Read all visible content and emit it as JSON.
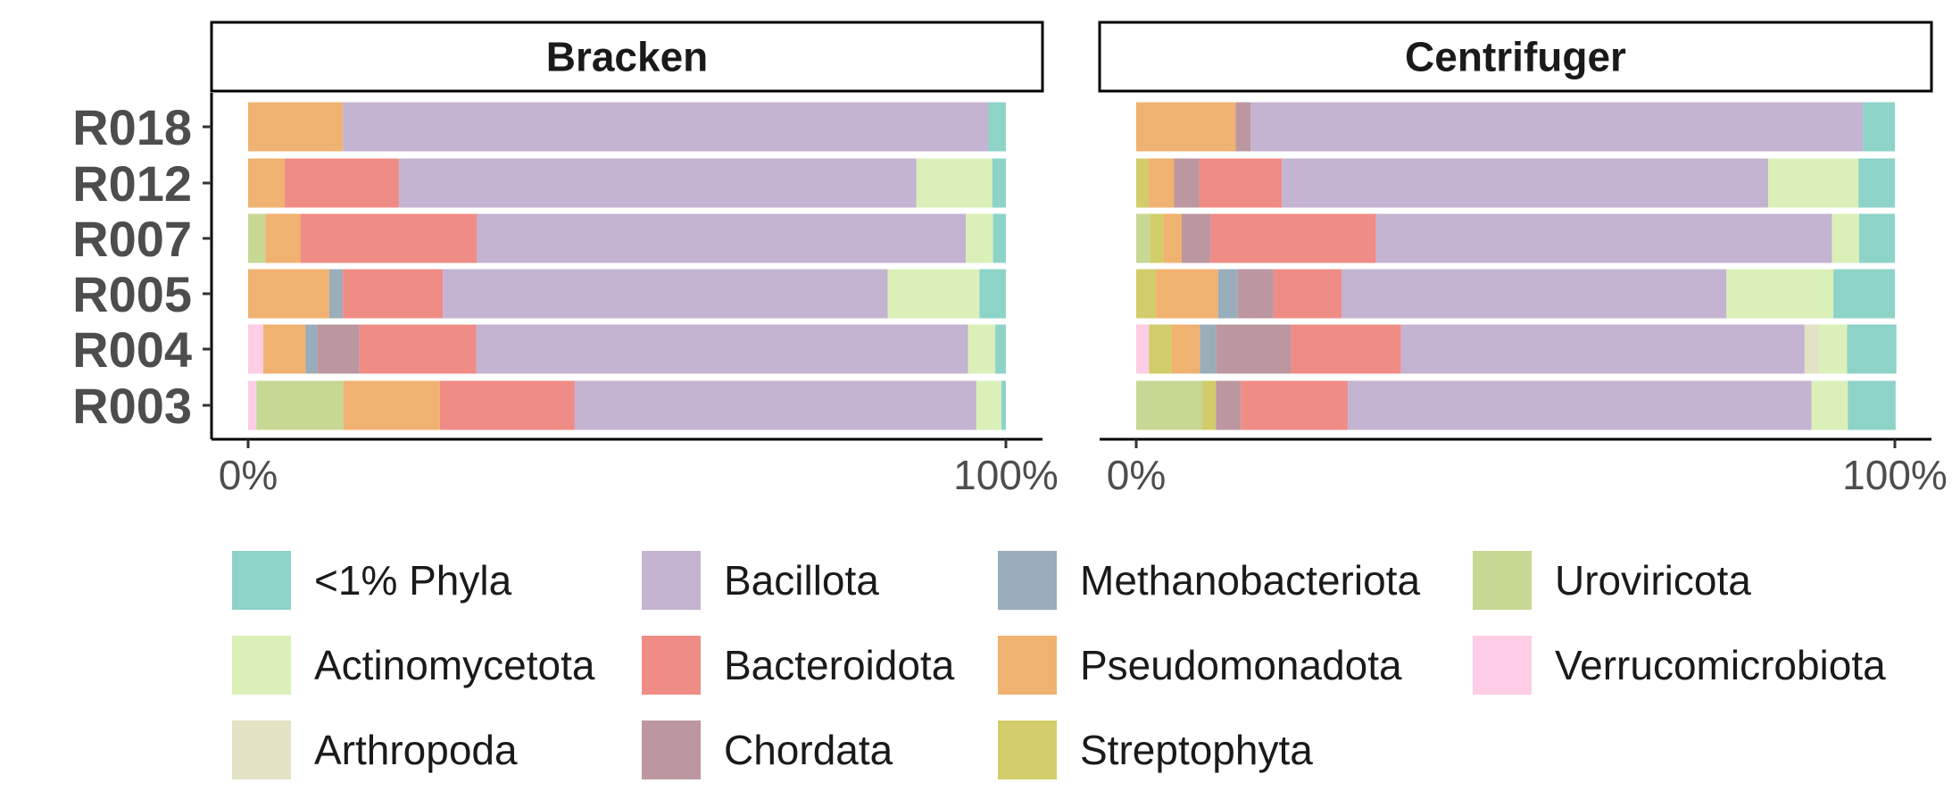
{
  "chart_data": {
    "type": "bar",
    "orientation": "horizontal",
    "stacked": true,
    "xlim": [
      0,
      100
    ],
    "x_tick_labels": [
      "0%",
      "100%"
    ],
    "samples": [
      "R018",
      "R012",
      "R007",
      "R005",
      "R004",
      "R003"
    ],
    "legend_position": "bottom",
    "legend": [
      {
        "name": "<1% Phyla",
        "color": "#8DD3C7"
      },
      {
        "name": "Actinomycetota",
        "color": "#DAF0B8"
      },
      {
        "name": "Arthropoda",
        "color": "#E4E2C4"
      },
      {
        "name": "Bacillota",
        "color": "#C4B3D1"
      },
      {
        "name": "Bacteroidota",
        "color": "#F08C86"
      },
      {
        "name": "Chordata",
        "color": "#BC979F"
      },
      {
        "name": "Methanobacteriota",
        "color": "#99ADBB"
      },
      {
        "name": "Pseudomonadota",
        "color": "#F0B270"
      },
      {
        "name": "Streptophyta",
        "color": "#D2CD6A"
      },
      {
        "name": "Uroviricota",
        "color": "#C7D895"
      },
      {
        "name": "Verrucomicrobiota",
        "color": "#FCCDE5"
      }
    ],
    "panels": [
      {
        "title": "Bracken",
        "rows": [
          {
            "sample": "R018",
            "segments": [
              {
                "phylum": "Pseudomonadota",
                "value": 12.5
              },
              {
                "phylum": "Bacillota",
                "value": 85.2
              },
              {
                "phylum": "<1% Phyla",
                "value": 2.3
              }
            ]
          },
          {
            "sample": "R012",
            "segments": [
              {
                "phylum": "Pseudomonadota",
                "value": 4.8
              },
              {
                "phylum": "Bacteroidota",
                "value": 15.1
              },
              {
                "phylum": "Bacillota",
                "value": 68.3
              },
              {
                "phylum": "Actinomycetota",
                "value": 10.0
              },
              {
                "phylum": "<1% Phyla",
                "value": 1.8
              }
            ]
          },
          {
            "sample": "R007",
            "segments": [
              {
                "phylum": "Uroviricota",
                "value": 2.3
              },
              {
                "phylum": "Pseudomonadota",
                "value": 4.6
              },
              {
                "phylum": "Bacteroidota",
                "value": 23.3
              },
              {
                "phylum": "Bacillota",
                "value": 64.5
              },
              {
                "phylum": "Actinomycetota",
                "value": 3.6
              },
              {
                "phylum": "<1% Phyla",
                "value": 1.7
              }
            ]
          },
          {
            "sample": "R005",
            "segments": [
              {
                "phylum": "Pseudomonadota",
                "value": 10.7
              },
              {
                "phylum": "Methanobacteriota",
                "value": 1.8
              },
              {
                "phylum": "Bacteroidota",
                "value": 13.2
              },
              {
                "phylum": "Bacillota",
                "value": 58.7
              },
              {
                "phylum": "Actinomycetota",
                "value": 12.1
              },
              {
                "phylum": "<1% Phyla",
                "value": 3.5
              }
            ]
          },
          {
            "sample": "R004",
            "segments": [
              {
                "phylum": "Verrucomicrobiota",
                "value": 2.0
              },
              {
                "phylum": "Pseudomonadota",
                "value": 5.6
              },
              {
                "phylum": "Methanobacteriota",
                "value": 1.5
              },
              {
                "phylum": "Chordata",
                "value": 5.6
              },
              {
                "phylum": "Bacteroidota",
                "value": 15.4
              },
              {
                "phylum": "Bacillota",
                "value": 64.9
              },
              {
                "phylum": "Actinomycetota",
                "value": 3.6
              },
              {
                "phylum": "<1% Phyla",
                "value": 1.4
              }
            ]
          },
          {
            "sample": "R003",
            "segments": [
              {
                "phylum": "Verrucomicrobiota",
                "value": 1.1
              },
              {
                "phylum": "Uroviricota",
                "value": 11.5
              },
              {
                "phylum": "Pseudomonadota",
                "value": 12.7
              },
              {
                "phylum": "Bacteroidota",
                "value": 17.8
              },
              {
                "phylum": "Bacillota",
                "value": 53.0
              },
              {
                "phylum": "Actinomycetota",
                "value": 3.3
              },
              {
                "phylum": "<1% Phyla",
                "value": 0.6
              }
            ]
          }
        ]
      },
      {
        "title": "Centrifuger",
        "rows": [
          {
            "sample": "R018",
            "segments": [
              {
                "phylum": "Pseudomonadota",
                "value": 13.1
              },
              {
                "phylum": "Chordata",
                "value": 2.0
              },
              {
                "phylum": "Bacillota",
                "value": 80.7
              },
              {
                "phylum": "<1% Phyla",
                "value": 4.2
              }
            ]
          },
          {
            "sample": "R012",
            "segments": [
              {
                "phylum": "Streptophyta",
                "value": 1.6
              },
              {
                "phylum": "Pseudomonadota",
                "value": 3.4
              },
              {
                "phylum": "Chordata",
                "value": 3.3
              },
              {
                "phylum": "Bacteroidota",
                "value": 10.9
              },
              {
                "phylum": "Bacillota",
                "value": 64.1
              },
              {
                "phylum": "Actinomycetota",
                "value": 11.9
              },
              {
                "phylum": "<1% Phyla",
                "value": 4.8
              }
            ]
          },
          {
            "sample": "R007",
            "segments": [
              {
                "phylum": "Uroviricota",
                "value": 1.8
              },
              {
                "phylum": "Streptophyta",
                "value": 1.8
              },
              {
                "phylum": "Pseudomonadota",
                "value": 2.4
              },
              {
                "phylum": "Chordata",
                "value": 3.8
              },
              {
                "phylum": "Bacteroidota",
                "value": 21.8
              },
              {
                "phylum": "Bacillota",
                "value": 60.1
              },
              {
                "phylum": "Actinomycetota",
                "value": 3.6
              },
              {
                "phylum": "<1% Phyla",
                "value": 4.7
              }
            ]
          },
          {
            "sample": "R005",
            "segments": [
              {
                "phylum": "Streptophyta",
                "value": 2.6
              },
              {
                "phylum": "Pseudomonadota",
                "value": 8.2
              },
              {
                "phylum": "Methanobacteriota",
                "value": 2.6
              },
              {
                "phylum": "Chordata",
                "value": 4.7
              },
              {
                "phylum": "Bacteroidota",
                "value": 9.0
              },
              {
                "phylum": "Bacillota",
                "value": 50.7
              },
              {
                "phylum": "Actinomycetota",
                "value": 14.1
              },
              {
                "phylum": "<1% Phyla",
                "value": 8.1
              }
            ]
          },
          {
            "sample": "R004",
            "segments": [
              {
                "phylum": "Verrucomicrobiota",
                "value": 1.7
              },
              {
                "phylum": "Streptophyta",
                "value": 3.0
              },
              {
                "phylum": "Pseudomonadota",
                "value": 3.7
              },
              {
                "phylum": "Methanobacteriota",
                "value": 2.1
              },
              {
                "phylum": "Chordata",
                "value": 9.9
              },
              {
                "phylum": "Bacteroidota",
                "value": 14.5
              },
              {
                "phylum": "Bacillota",
                "value": 53.2
              },
              {
                "phylum": "Arthropoda",
                "value": 2.0
              },
              {
                "phylum": "Actinomycetota",
                "value": 3.6
              },
              {
                "phylum": "<1% Phyla",
                "value": 6.5
              }
            ]
          },
          {
            "sample": "R003",
            "segments": [
              {
                "phylum": "Uroviricota",
                "value": 8.7
              },
              {
                "phylum": "Streptophyta",
                "value": 1.8
              },
              {
                "phylum": "Chordata",
                "value": 3.3
              },
              {
                "phylum": "Bacteroidota",
                "value": 14.1
              },
              {
                "phylum": "Bacillota",
                "value": 61.1
              },
              {
                "phylum": "Actinomycetota",
                "value": 4.8
              },
              {
                "phylum": "<1% Phyla",
                "value": 6.3
              }
            ]
          }
        ]
      }
    ]
  }
}
